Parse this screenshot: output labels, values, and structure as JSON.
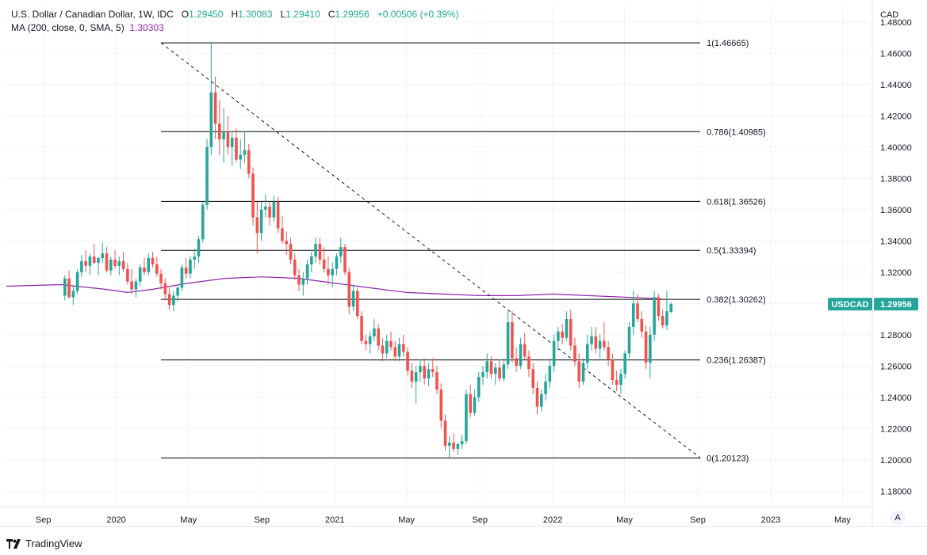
{
  "header": {
    "symbol_title": "U.S. Dollar / Canadian Dollar, 1W, IDC",
    "open_label": "O",
    "open": "1.29450",
    "high_label": "H",
    "high": "1.30083",
    "low_label": "L",
    "low": "1.29410",
    "close_label": "C",
    "close": "1.29956",
    "change": "+0.00506 (+0.39%)",
    "ma_label": "MA (200, close, 0, SMA, 5)",
    "ma_value": "1.30303"
  },
  "footer": {
    "brand": "TradingView",
    "auto_button": "A"
  },
  "colors": {
    "up": "#26a69a",
    "down": "#ef5350",
    "ma": "#8e24aa",
    "fib": "#000000",
    "price_tag": "#26a69a"
  },
  "chart_data": {
    "type": "candlestick",
    "title": "U.S. Dollar / Canadian Dollar, 1W, IDC",
    "currency_label": "CAD",
    "ylim": [
      1.17,
      1.49
    ],
    "y_ticks": [
      "1.48000",
      "1.46000",
      "1.44000",
      "1.42000",
      "1.40000",
      "1.38000",
      "1.36000",
      "1.34000",
      "1.32000",
      "1.30000",
      "1.28000",
      "1.26000",
      "1.24000",
      "1.22000",
      "1.20000",
      "1.18000"
    ],
    "x_ticks": [
      {
        "label": "Sep",
        "date": "2019-09-01"
      },
      {
        "label": "2020",
        "date": "2020-01-01"
      },
      {
        "label": "May",
        "date": "2020-05-01"
      },
      {
        "label": "Sep",
        "date": "2020-09-01"
      },
      {
        "label": "2021",
        "date": "2021-01-01"
      },
      {
        "label": "May",
        "date": "2021-05-01"
      },
      {
        "label": "Sep",
        "date": "2021-09-01"
      },
      {
        "label": "2022",
        "date": "2022-01-01"
      },
      {
        "label": "May",
        "date": "2022-05-01"
      },
      {
        "label": "Sep",
        "date": "2022-09-01"
      },
      {
        "label": "2023",
        "date": "2023-01-01"
      },
      {
        "label": "May",
        "date": "2023-05-01"
      }
    ],
    "price_tag": {
      "label": "USDCAD",
      "value": "1.29956",
      "price": 1.29956
    },
    "fib_levels": [
      {
        "label": "1(1.46665)",
        "price": 1.46665
      },
      {
        "label": "0.786(1.40985)",
        "price": 1.40985
      },
      {
        "label": "0.618(1.36526)",
        "price": 1.36526
      },
      {
        "label": "0.5(1.33394)",
        "price": 1.33394
      },
      {
        "label": "0.382(1.30262)",
        "price": 1.30262
      },
      {
        "label": "0.236(1.26387)",
        "price": 1.26387
      },
      {
        "label": "0(1.20123)",
        "price": 1.20123
      }
    ],
    "fib_start_date": "2020-03-16",
    "fib_end_date": "2022-09-05",
    "trendline": {
      "from": {
        "date": "2020-03-16",
        "price": 1.46665
      },
      "to": {
        "date": "2022-09-05",
        "price": 1.20123
      }
    },
    "ma_series": [
      {
        "date": "2019-07-01",
        "value": 1.311
      },
      {
        "date": "2019-10-01",
        "value": 1.312
      },
      {
        "date": "2019-12-15",
        "value": 1.309
      },
      {
        "date": "2020-01-20",
        "value": 1.307
      },
      {
        "date": "2020-03-01",
        "value": 1.309
      },
      {
        "date": "2020-05-01",
        "value": 1.313
      },
      {
        "date": "2020-07-01",
        "value": 1.316
      },
      {
        "date": "2020-09-01",
        "value": 1.317
      },
      {
        "date": "2020-11-01",
        "value": 1.316
      },
      {
        "date": "2021-01-01",
        "value": 1.313
      },
      {
        "date": "2021-03-01",
        "value": 1.31
      },
      {
        "date": "2021-05-01",
        "value": 1.307
      },
      {
        "date": "2021-07-01",
        "value": 1.306
      },
      {
        "date": "2021-09-01",
        "value": 1.305
      },
      {
        "date": "2021-11-01",
        "value": 1.305
      },
      {
        "date": "2022-01-01",
        "value": 1.306
      },
      {
        "date": "2022-03-01",
        "value": 1.305
      },
      {
        "date": "2022-05-01",
        "value": 1.304
      },
      {
        "date": "2022-07-01",
        "value": 1.303
      }
    ],
    "candles": [
      [
        1.305,
        1.318,
        1.302,
        1.316
      ],
      [
        1.316,
        1.321,
        1.303,
        1.304
      ],
      [
        1.304,
        1.311,
        1.299,
        1.308
      ],
      [
        1.308,
        1.322,
        1.306,
        1.32
      ],
      [
        1.32,
        1.331,
        1.317,
        1.327
      ],
      [
        1.327,
        1.334,
        1.32,
        1.324
      ],
      [
        1.324,
        1.332,
        1.318,
        1.33
      ],
      [
        1.33,
        1.338,
        1.325,
        1.326
      ],
      [
        1.326,
        1.33,
        1.318,
        1.329
      ],
      [
        1.329,
        1.339,
        1.326,
        1.332
      ],
      [
        1.332,
        1.336,
        1.32,
        1.321
      ],
      [
        1.321,
        1.33,
        1.318,
        1.328
      ],
      [
        1.328,
        1.334,
        1.322,
        1.324
      ],
      [
        1.324,
        1.33,
        1.318,
        1.327
      ],
      [
        1.327,
        1.333,
        1.32,
        1.322
      ],
      [
        1.322,
        1.326,
        1.312,
        1.314
      ],
      [
        1.314,
        1.322,
        1.306,
        1.309
      ],
      [
        1.309,
        1.316,
        1.304,
        1.314
      ],
      [
        1.314,
        1.325,
        1.311,
        1.323
      ],
      [
        1.323,
        1.329,
        1.318,
        1.32
      ],
      [
        1.32,
        1.332,
        1.318,
        1.329
      ],
      [
        1.329,
        1.333,
        1.323,
        1.325
      ],
      [
        1.325,
        1.33,
        1.317,
        1.319
      ],
      [
        1.319,
        1.322,
        1.309,
        1.313
      ],
      [
        1.313,
        1.316,
        1.302,
        1.306
      ],
      [
        1.306,
        1.31,
        1.296,
        1.299
      ],
      [
        1.299,
        1.308,
        1.295,
        1.305
      ],
      [
        1.305,
        1.312,
        1.301,
        1.31
      ],
      [
        1.31,
        1.325,
        1.308,
        1.323
      ],
      [
        1.323,
        1.329,
        1.316,
        1.319
      ],
      [
        1.319,
        1.33,
        1.316,
        1.328
      ],
      [
        1.328,
        1.335,
        1.322,
        1.33
      ],
      [
        1.33,
        1.343,
        1.326,
        1.341
      ],
      [
        1.341,
        1.365,
        1.339,
        1.363
      ],
      [
        1.363,
        1.405,
        1.36,
        1.4
      ],
      [
        1.4,
        1.4667,
        1.395,
        1.435
      ],
      [
        1.435,
        1.445,
        1.405,
        1.415
      ],
      [
        1.415,
        1.43,
        1.395,
        1.405
      ],
      [
        1.405,
        1.425,
        1.39,
        1.41
      ],
      [
        1.41,
        1.42,
        1.395,
        1.4
      ],
      [
        1.4,
        1.41,
        1.388,
        1.406
      ],
      [
        1.406,
        1.412,
        1.39,
        1.392
      ],
      [
        1.392,
        1.405,
        1.386,
        1.395
      ],
      [
        1.395,
        1.41,
        1.39,
        1.398
      ],
      [
        1.398,
        1.402,
        1.38,
        1.383
      ],
      [
        1.383,
        1.387,
        1.35,
        1.355
      ],
      [
        1.355,
        1.365,
        1.332,
        1.345
      ],
      [
        1.345,
        1.365,
        1.34,
        1.36
      ],
      [
        1.36,
        1.37,
        1.355,
        1.362
      ],
      [
        1.362,
        1.365,
        1.35,
        1.355
      ],
      [
        1.355,
        1.369,
        1.352,
        1.365
      ],
      [
        1.365,
        1.368,
        1.345,
        1.348
      ],
      [
        1.348,
        1.356,
        1.338,
        1.34
      ],
      [
        1.34,
        1.346,
        1.331,
        1.338
      ],
      [
        1.338,
        1.342,
        1.325,
        1.328
      ],
      [
        1.328,
        1.332,
        1.315,
        1.318
      ],
      [
        1.318,
        1.322,
        1.308,
        1.312
      ],
      [
        1.312,
        1.32,
        1.305,
        1.316
      ],
      [
        1.316,
        1.328,
        1.312,
        1.325
      ],
      [
        1.325,
        1.333,
        1.32,
        1.33
      ],
      [
        1.33,
        1.342,
        1.326,
        1.338
      ],
      [
        1.338,
        1.342,
        1.325,
        1.328
      ],
      [
        1.328,
        1.336,
        1.32,
        1.322
      ],
      [
        1.322,
        1.33,
        1.312,
        1.318
      ],
      [
        1.318,
        1.326,
        1.31,
        1.322
      ],
      [
        1.322,
        1.332,
        1.318,
        1.33
      ],
      [
        1.33,
        1.342,
        1.326,
        1.336
      ],
      [
        1.336,
        1.338,
        1.318,
        1.32
      ],
      [
        1.32,
        1.323,
        1.293,
        1.298
      ],
      [
        1.298,
        1.312,
        1.295,
        1.308
      ],
      [
        1.308,
        1.31,
        1.29,
        1.292
      ],
      [
        1.292,
        1.295,
        1.274,
        1.276
      ],
      [
        1.276,
        1.28,
        1.27,
        1.274
      ],
      [
        1.274,
        1.282,
        1.268,
        1.279
      ],
      [
        1.279,
        1.29,
        1.276,
        1.284
      ],
      [
        1.284,
        1.287,
        1.27,
        1.273
      ],
      [
        1.273,
        1.278,
        1.263,
        1.268
      ],
      [
        1.268,
        1.28,
        1.265,
        1.276
      ],
      [
        1.276,
        1.282,
        1.27,
        1.272
      ],
      [
        1.272,
        1.276,
        1.263,
        1.266
      ],
      [
        1.266,
        1.278,
        1.263,
        1.274
      ],
      [
        1.274,
        1.28,
        1.266,
        1.269
      ],
      [
        1.269,
        1.272,
        1.254,
        1.257
      ],
      [
        1.257,
        1.262,
        1.246,
        1.25
      ],
      [
        1.25,
        1.26,
        1.236,
        1.256
      ],
      [
        1.256,
        1.264,
        1.25,
        1.26
      ],
      [
        1.26,
        1.265,
        1.248,
        1.252
      ],
      [
        1.252,
        1.262,
        1.247,
        1.258
      ],
      [
        1.258,
        1.265,
        1.253,
        1.256
      ],
      [
        1.256,
        1.26,
        1.242,
        1.245
      ],
      [
        1.245,
        1.249,
        1.22,
        1.225
      ],
      [
        1.225,
        1.229,
        1.206,
        1.209
      ],
      [
        1.209,
        1.215,
        1.2013,
        1.211
      ],
      [
        1.211,
        1.217,
        1.205,
        1.207
      ],
      [
        1.207,
        1.211,
        1.203,
        1.21
      ],
      [
        1.21,
        1.216,
        1.207,
        1.212
      ],
      [
        1.212,
        1.245,
        1.21,
        1.242
      ],
      [
        1.242,
        1.248,
        1.227,
        1.23
      ],
      [
        1.23,
        1.245,
        1.228,
        1.24
      ],
      [
        1.24,
        1.256,
        1.237,
        1.253
      ],
      [
        1.253,
        1.26,
        1.248,
        1.256
      ],
      [
        1.256,
        1.268,
        1.252,
        1.263
      ],
      [
        1.263,
        1.266,
        1.252,
        1.255
      ],
      [
        1.255,
        1.262,
        1.248,
        1.259
      ],
      [
        1.259,
        1.264,
        1.25,
        1.252
      ],
      [
        1.252,
        1.265,
        1.25,
        1.261
      ],
      [
        1.261,
        1.295,
        1.258,
        1.288
      ],
      [
        1.288,
        1.295,
        1.262,
        1.265
      ],
      [
        1.265,
        1.272,
        1.256,
        1.26
      ],
      [
        1.26,
        1.278,
        1.258,
        1.274
      ],
      [
        1.274,
        1.281,
        1.264,
        1.266
      ],
      [
        1.266,
        1.27,
        1.253,
        1.258
      ],
      [
        1.258,
        1.262,
        1.242,
        1.246
      ],
      [
        1.246,
        1.25,
        1.229,
        1.234
      ],
      [
        1.234,
        1.245,
        1.231,
        1.242
      ],
      [
        1.242,
        1.255,
        1.238,
        1.25
      ],
      [
        1.25,
        1.265,
        1.246,
        1.26
      ],
      [
        1.26,
        1.28,
        1.256,
        1.276
      ],
      [
        1.276,
        1.285,
        1.27,
        1.282
      ],
      [
        1.282,
        1.287,
        1.274,
        1.278
      ],
      [
        1.278,
        1.295,
        1.276,
        1.29
      ],
      [
        1.29,
        1.296,
        1.27,
        1.273
      ],
      [
        1.273,
        1.278,
        1.26,
        1.263
      ],
      [
        1.263,
        1.268,
        1.246,
        1.25
      ],
      [
        1.25,
        1.265,
        1.248,
        1.262
      ],
      [
        1.262,
        1.28,
        1.258,
        1.274
      ],
      [
        1.274,
        1.285,
        1.27,
        1.279
      ],
      [
        1.279,
        1.285,
        1.268,
        1.271
      ],
      [
        1.271,
        1.28,
        1.265,
        1.276
      ],
      [
        1.276,
        1.288,
        1.27,
        1.272
      ],
      [
        1.272,
        1.276,
        1.26,
        1.264
      ],
      [
        1.264,
        1.268,
        1.248,
        1.251
      ],
      [
        1.251,
        1.257,
        1.244,
        1.248
      ],
      [
        1.248,
        1.258,
        1.242,
        1.255
      ],
      [
        1.255,
        1.27,
        1.252,
        1.268
      ],
      [
        1.268,
        1.288,
        1.265,
        1.285
      ],
      [
        1.285,
        1.308,
        1.28,
        1.3
      ],
      [
        1.3,
        1.306,
        1.288,
        1.29
      ],
      [
        1.29,
        1.295,
        1.278,
        1.282
      ],
      [
        1.282,
        1.286,
        1.258,
        1.262
      ],
      [
        1.262,
        1.285,
        1.252,
        1.28
      ],
      [
        1.28,
        1.308,
        1.276,
        1.304
      ],
      [
        1.304,
        1.306,
        1.289,
        1.292
      ],
      [
        1.292,
        1.296,
        1.284,
        1.286
      ],
      [
        1.286,
        1.308,
        1.283,
        1.295
      ],
      [
        1.2945,
        1.3008,
        1.2941,
        1.2996
      ]
    ]
  }
}
